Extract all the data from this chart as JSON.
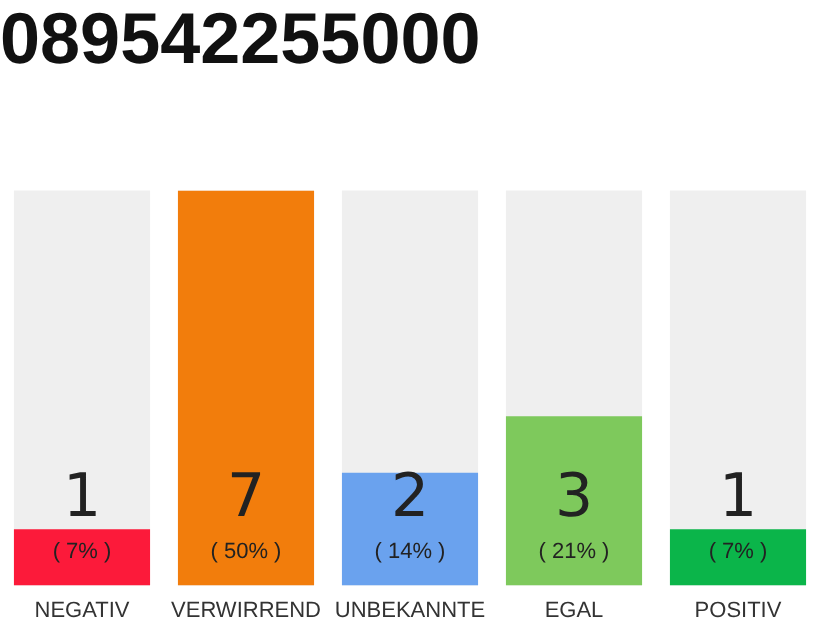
{
  "chart_data": {
    "type": "bar",
    "title": "089542255000",
    "categories": [
      "NEGATIV",
      "VERWIRREND",
      "UNBEKANNTE",
      "EGAL",
      "POSITIV"
    ],
    "values": [
      1,
      7,
      2,
      3,
      1
    ],
    "colors": [
      "#fc1a3a",
      "#f27d0c",
      "#6aa2ee",
      "#7ec95c",
      "#0bb54a"
    ],
    "ylim": [
      0,
      7
    ],
    "tick_labels": "x",
    "grid": false,
    "legend": false,
    "data_labels": true,
    "annotations": [
      {
        "text": "( 7% )",
        "x": "NEGATIV",
        "y": 0
      },
      {
        "text": "( 50% )",
        "x": "VERWIRREND",
        "y": 0
      },
      {
        "text": "( 14% )",
        "x": "UNBEKANNTE",
        "y": 0
      },
      {
        "text": "( 21% )",
        "x": "EGAL",
        "y": 0
      },
      {
        "text": "( 7% )",
        "x": "POSITIV",
        "y": 0
      }
    ]
  }
}
